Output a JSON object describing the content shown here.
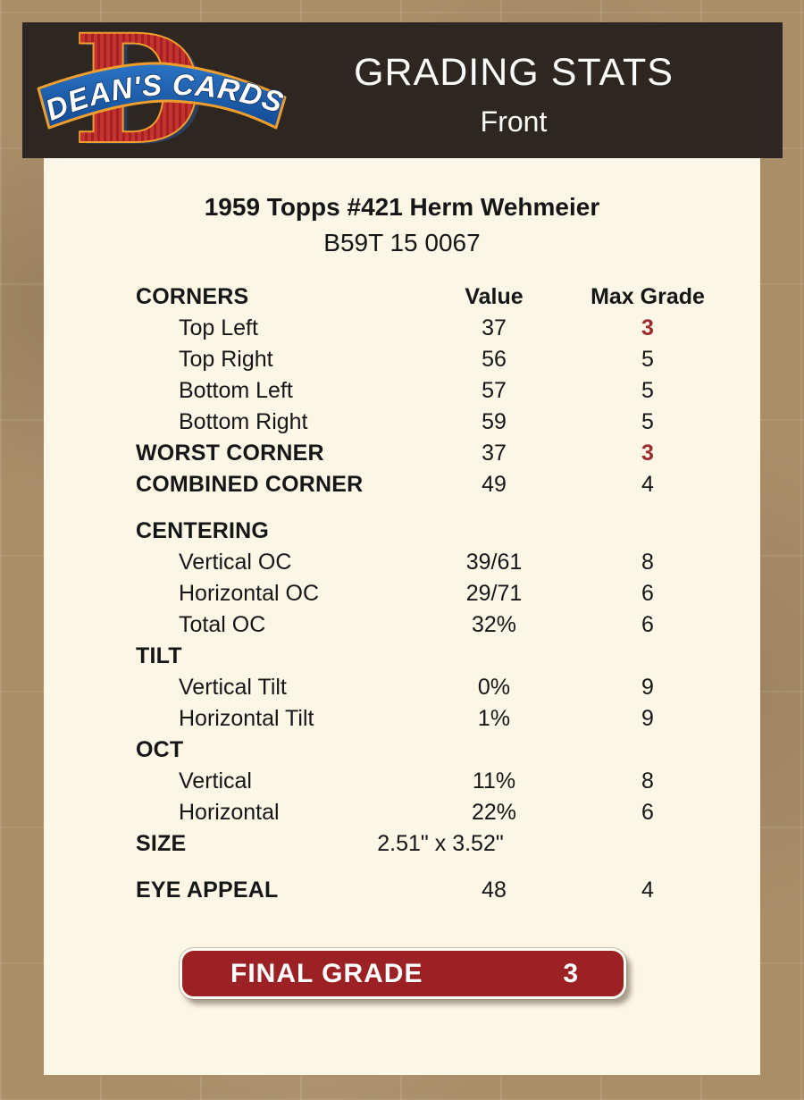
{
  "header": {
    "title": "GRADING STATS",
    "subtitle": "Front",
    "bg_color": "#2d2621",
    "logo": {
      "letter": "D",
      "banner_text": "DEAN'S CARDS",
      "letter_color": "#c5332e",
      "banner_color": "#1d5dae",
      "outline_color": "#ef9e2d"
    }
  },
  "card_info": {
    "title": "1959 Topps #421 Herm Wehmeier",
    "serial": "B59T 15 0067"
  },
  "grading_table": {
    "rows": [
      {
        "label": "CORNERS",
        "value": "Value",
        "grade": "Max Grade",
        "type": "section",
        "header_row": true
      },
      {
        "label": "Top Left",
        "value": "37",
        "grade": "3",
        "type": "item",
        "grade_red": true
      },
      {
        "label": "Top Right",
        "value": "56",
        "grade": "5",
        "type": "item"
      },
      {
        "label": "Bottom Left",
        "value": "57",
        "grade": "5",
        "type": "item"
      },
      {
        "label": "Bottom Right",
        "value": "59",
        "grade": "5",
        "type": "item"
      },
      {
        "label": "WORST CORNER",
        "value": "37",
        "grade": "3",
        "type": "section",
        "grade_red": true
      },
      {
        "label": "COMBINED CORNER",
        "value": "49",
        "grade": "4",
        "type": "section"
      },
      {
        "label": "CENTERING",
        "value": "",
        "grade": "",
        "type": "section",
        "gap_before": true
      },
      {
        "label": "Vertical OC",
        "value": "39/61",
        "grade": "8",
        "type": "item"
      },
      {
        "label": "Horizontal OC",
        "value": "29/71",
        "grade": "6",
        "type": "item"
      },
      {
        "label": "Total OC",
        "value": "32%",
        "grade": "6",
        "type": "item"
      },
      {
        "label": "TILT",
        "value": "",
        "grade": "",
        "type": "section"
      },
      {
        "label": "Vertical Tilt",
        "value": "0%",
        "grade": "9",
        "type": "item"
      },
      {
        "label": "Horizontal Tilt",
        "value": "1%",
        "grade": "9",
        "type": "item"
      },
      {
        "label": "OCT",
        "value": "",
        "grade": "",
        "type": "section"
      },
      {
        "label": "Vertical",
        "value": "11%",
        "grade": "8",
        "type": "item"
      },
      {
        "label": "Horizontal",
        "value": "22%",
        "grade": "6",
        "type": "item"
      },
      {
        "label": "SIZE",
        "value": "2.51\" x 3.52\"",
        "grade": "",
        "type": "section",
        "value_wide": true
      },
      {
        "label": "EYE APPEAL",
        "value": "48",
        "grade": "4",
        "type": "section",
        "gap_before": true
      }
    ],
    "accent_red": "#9b2a2d"
  },
  "final_grade": {
    "label": "FINAL GRADE",
    "value": "3",
    "bg_color": "#9b2125"
  }
}
